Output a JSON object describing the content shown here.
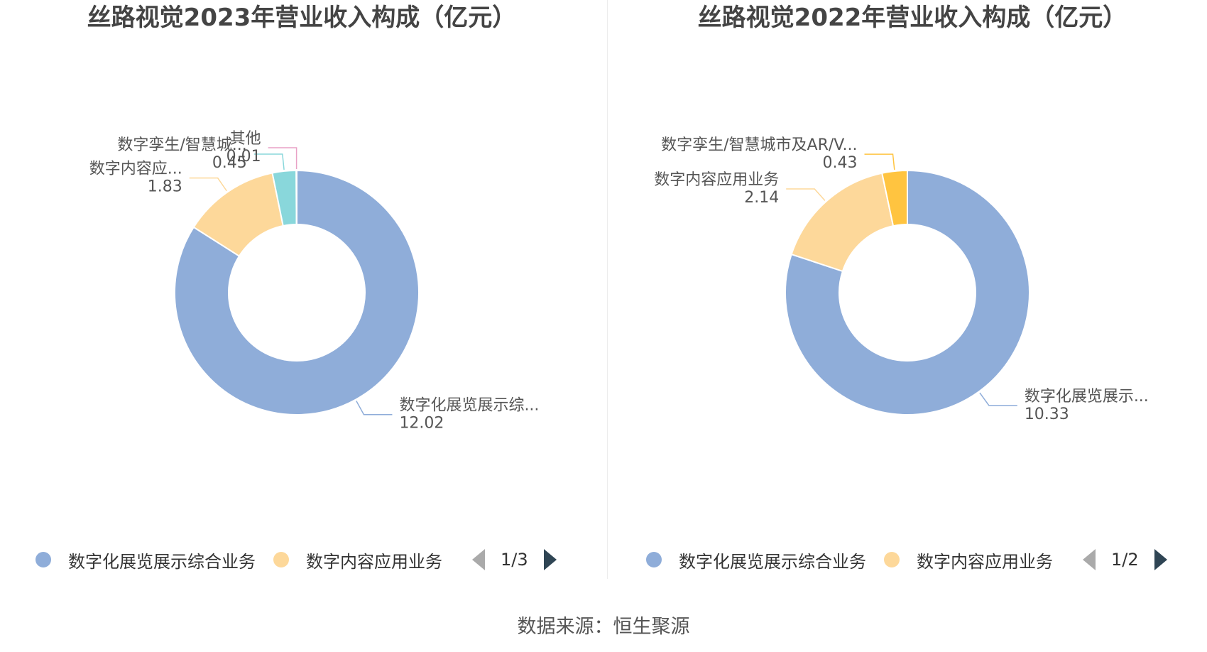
{
  "source": "数据来源：恒生聚源",
  "chart_data": [
    {
      "type": "pie",
      "style": "donut",
      "title": "丝路视觉2023年营业收入构成（亿元）",
      "slices": [
        {
          "name": "数字化展览展示综合业务",
          "label": "数字化展览展示综...",
          "value": 12.02,
          "value_label": "12.02",
          "color": "#8fadd9"
        },
        {
          "name": "数字内容应用业务",
          "label": "数字内容应...",
          "value": 1.83,
          "value_label": "1.83",
          "color": "#fdd89a"
        },
        {
          "name": "数字孪生/智慧城市",
          "label": "数字孪生/智慧城...",
          "value": 0.45,
          "value_label": "0.45",
          "color": "#89d7db"
        },
        {
          "name": "其他",
          "label": "其他",
          "value": 0.01,
          "value_label": "0.01",
          "color": "#e9a1c6"
        }
      ],
      "legend": {
        "items": [
          {
            "label": "数字化展览展示综合业务",
            "color": "#8fadd9"
          },
          {
            "label": "数字内容应用业务",
            "color": "#fdd89a"
          }
        ],
        "page": "1/3"
      }
    },
    {
      "type": "pie",
      "style": "donut",
      "title": "丝路视觉2022年营业收入构成（亿元）",
      "slices": [
        {
          "name": "数字化展览展示综合业务",
          "label": "数字化展览展示...",
          "value": 10.33,
          "value_label": "10.33",
          "color": "#8fadd9"
        },
        {
          "name": "数字内容应用业务",
          "label": "数字内容应用业务",
          "value": 2.14,
          "value_label": "2.14",
          "color": "#fdd89a"
        },
        {
          "name": "数字孪生/智慧城市及AR/VR",
          "label": "数字孪生/智慧城市及AR/V...",
          "value": 0.43,
          "value_label": "0.43",
          "color": "#ffc440"
        }
      ],
      "legend": {
        "items": [
          {
            "label": "数字化展览展示综合业务",
            "color": "#8fadd9"
          },
          {
            "label": "数字内容应用业务",
            "color": "#fdd89a"
          }
        ],
        "page": "1/2"
      }
    }
  ]
}
